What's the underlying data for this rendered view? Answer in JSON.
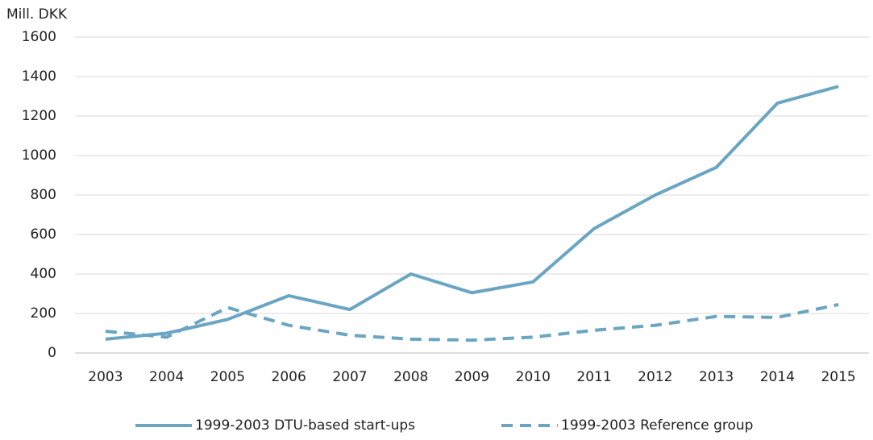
{
  "chart_data": {
    "type": "line",
    "y_label": "Mill. DKK",
    "categories": [
      "2003",
      "2004",
      "2005",
      "2006",
      "2007",
      "2008",
      "2009",
      "2010",
      "2011",
      "2012",
      "2013",
      "2014",
      "2015"
    ],
    "series": [
      {
        "name": "1999-2003 DTU-based start-ups",
        "color": "#6aa5c3",
        "dash": false,
        "values": [
          70,
          100,
          170,
          290,
          220,
          400,
          305,
          360,
          630,
          800,
          940,
          1265,
          1350
        ]
      },
      {
        "name": "1999-2003 Reference group",
        "color": "#6aa5c3",
        "dash": true,
        "values": [
          110,
          80,
          230,
          140,
          90,
          70,
          65,
          80,
          115,
          140,
          185,
          180,
          245
        ]
      }
    ],
    "ylim": [
      0,
      1600
    ],
    "yticks": [
      0,
      200,
      400,
      600,
      800,
      1000,
      1200,
      1400,
      1600
    ],
    "grid": true
  }
}
